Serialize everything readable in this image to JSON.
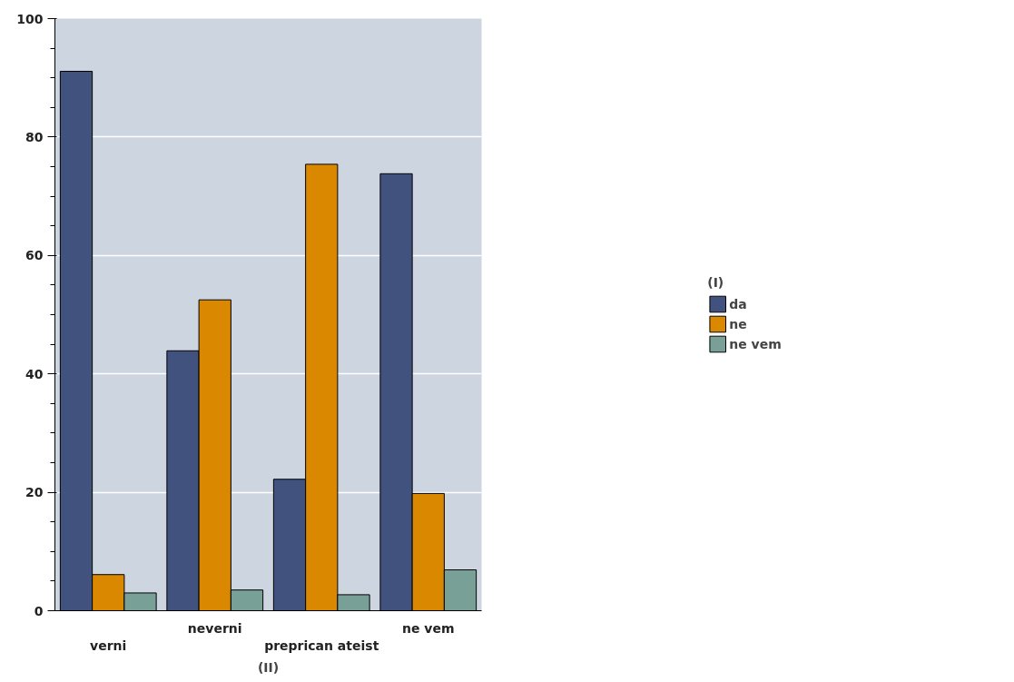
{
  "chart_data": {
    "type": "bar",
    "categories": [
      "verni",
      "neverni",
      "preprican ateist",
      "ne vem"
    ],
    "xlabel": "(II)",
    "legend_title": "(I)",
    "ylim": [
      0,
      100
    ],
    "yticks": [
      0,
      20,
      40,
      60,
      80,
      100
    ],
    "grid": "y",
    "legend": "right",
    "series": [
      {
        "name": "da",
        "color": "#42527e",
        "values": [
          91.1,
          43.9,
          22.2,
          73.8
        ]
      },
      {
        "name": "ne",
        "color": "#d98800",
        "values": [
          6.1,
          52.5,
          75.4,
          19.8
        ]
      },
      {
        "name": "ne vem",
        "color": "#78a096",
        "values": [
          3.0,
          3.5,
          2.7,
          6.9
        ]
      }
    ]
  }
}
